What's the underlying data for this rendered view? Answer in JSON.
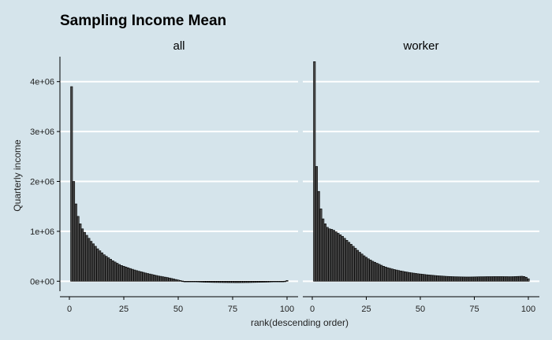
{
  "chart_data": {
    "type": "bar",
    "title": "Sampling Income Mean",
    "xlabel": "rank(descending order)",
    "ylabel": "Quarterly income",
    "xlim": [
      0,
      100
    ],
    "ylim": [
      -200000,
      4500000
    ],
    "x_ticks": [
      0,
      25,
      50,
      75,
      100
    ],
    "x_tick_labels": [
      "0",
      "25",
      "50",
      "75",
      "100"
    ],
    "y_ticks": [
      0,
      1000000,
      2000000,
      3000000,
      4000000
    ],
    "y_tick_labels": [
      "0e+00",
      "1e+06",
      "2e+06",
      "3e+06",
      "4e+06"
    ],
    "grid": "horizontal",
    "legend": "none",
    "panels": [
      {
        "name": "all",
        "x": [
          1,
          2,
          3,
          4,
          5,
          6,
          7,
          8,
          9,
          10,
          11,
          12,
          13,
          14,
          15,
          16,
          17,
          18,
          19,
          20,
          21,
          22,
          23,
          24,
          25,
          26,
          27,
          28,
          29,
          30,
          31,
          32,
          33,
          34,
          35,
          36,
          37,
          38,
          39,
          40,
          41,
          42,
          43,
          44,
          45,
          46,
          47,
          48,
          49,
          50,
          51,
          52,
          53,
          54,
          55,
          56,
          57,
          58,
          59,
          60,
          61,
          62,
          63,
          64,
          65,
          66,
          67,
          68,
          69,
          70,
          71,
          72,
          73,
          74,
          75,
          76,
          77,
          78,
          79,
          80,
          81,
          82,
          83,
          84,
          85,
          86,
          87,
          88,
          89,
          90,
          91,
          92,
          93,
          94,
          95,
          96,
          97,
          98,
          99,
          100
        ],
        "values": [
          3900000,
          2000000,
          1550000,
          1300000,
          1150000,
          1050000,
          980000,
          920000,
          860000,
          800000,
          750000,
          700000,
          650000,
          610000,
          570000,
          530000,
          500000,
          470000,
          440000,
          410000,
          385000,
          360000,
          335000,
          315000,
          300000,
          285000,
          270000,
          255000,
          240000,
          225000,
          212000,
          200000,
          190000,
          178000,
          165000,
          155000,
          145000,
          135000,
          125000,
          115000,
          105000,
          98000,
          90000,
          82000,
          75000,
          65000,
          55000,
          45000,
          35000,
          25000,
          15000,
          5000,
          0,
          -2000,
          -5000,
          -8000,
          -10000,
          -12000,
          -14000,
          -16000,
          -18000,
          -20000,
          -21000,
          -22000,
          -23000,
          -24000,
          -25000,
          -25000,
          -26000,
          -26000,
          -27000,
          -27000,
          -28000,
          -28000,
          -28000,
          -29000,
          -29000,
          -29000,
          -28000,
          -28000,
          -27000,
          -27000,
          -26000,
          -25000,
          -24000,
          -23000,
          -22000,
          -21000,
          -20000,
          -19000,
          -18000,
          -16000,
          -14000,
          -12000,
          -10000,
          -8000,
          -6000,
          -4000,
          2000,
          15000
        ]
      },
      {
        "name": "worker",
        "x": [
          1,
          2,
          3,
          4,
          5,
          6,
          7,
          8,
          9,
          10,
          11,
          12,
          13,
          14,
          15,
          16,
          17,
          18,
          19,
          20,
          21,
          22,
          23,
          24,
          25,
          26,
          27,
          28,
          29,
          30,
          31,
          32,
          33,
          34,
          35,
          36,
          37,
          38,
          39,
          40,
          41,
          42,
          43,
          44,
          45,
          46,
          47,
          48,
          49,
          50,
          51,
          52,
          53,
          54,
          55,
          56,
          57,
          58,
          59,
          60,
          61,
          62,
          63,
          64,
          65,
          66,
          67,
          68,
          69,
          70,
          71,
          72,
          73,
          74,
          75,
          76,
          77,
          78,
          79,
          80,
          81,
          82,
          83,
          84,
          85,
          86,
          87,
          88,
          89,
          90,
          91,
          92,
          93,
          94,
          95,
          96,
          97,
          98,
          99,
          100
        ],
        "values": [
          4400000,
          2300000,
          1800000,
          1450000,
          1250000,
          1150000,
          1080000,
          1050000,
          1040000,
          1020000,
          990000,
          960000,
          930000,
          900000,
          860000,
          820000,
          780000,
          740000,
          700000,
          660000,
          620000,
          580000,
          545000,
          510000,
          480000,
          450000,
          425000,
          400000,
          380000,
          360000,
          340000,
          320000,
          300000,
          285000,
          270000,
          258000,
          246000,
          235000,
          225000,
          215000,
          206000,
          198000,
          190000,
          182000,
          175000,
          168000,
          162000,
          156000,
          150000,
          145000,
          140000,
          135000,
          130000,
          126000,
          122000,
          118000,
          114000,
          110000,
          107000,
          104000,
          101000,
          98000,
          96000,
          94000,
          92000,
          90000,
          89000,
          88000,
          87000,
          86000,
          85000,
          85000,
          85000,
          86000,
          87000,
          88000,
          89000,
          90000,
          90000,
          91000,
          92000,
          92000,
          92000,
          93000,
          93000,
          93000,
          93000,
          93000,
          92000,
          92000,
          91000,
          91000,
          92000,
          94000,
          96000,
          98000,
          100000,
          95000,
          80000,
          50000
        ]
      }
    ]
  }
}
